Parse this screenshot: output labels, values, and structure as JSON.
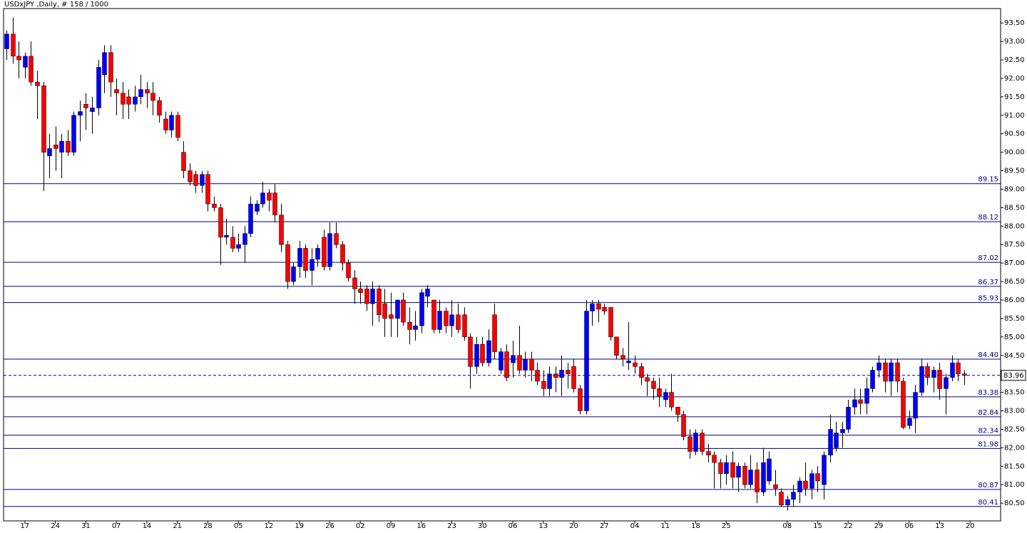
{
  "chart_data": {
    "type": "candlestick",
    "title": "USDxJPY ,Daily, # 158 / 1000",
    "up_color": "#0000ff",
    "down_color": "#ff0000",
    "level_color": "#000080",
    "grid": false,
    "xlim": [
      -0.5,
      163
    ],
    "ylim": [
      80.02,
      93.89
    ],
    "yticks": [
      {
        "value": 80.5,
        "label": "80.50"
      },
      {
        "value": 81,
        "label": "81.00"
      },
      {
        "value": 81.5,
        "label": "81.50"
      },
      {
        "value": 82,
        "label": "82.00"
      },
      {
        "value": 82.5,
        "label": "82.50"
      },
      {
        "value": 83,
        "label": "83.00"
      },
      {
        "value": 83.5,
        "label": "83.50"
      },
      {
        "value": 84,
        "label": "84.00"
      },
      {
        "value": 84.5,
        "label": "84.50"
      },
      {
        "value": 85,
        "label": "85.00"
      },
      {
        "value": 85.5,
        "label": "85.50"
      },
      {
        "value": 86,
        "label": "86.00"
      },
      {
        "value": 86.5,
        "label": "86.50"
      },
      {
        "value": 87,
        "label": "87.00"
      },
      {
        "value": 87.5,
        "label": "87.50"
      },
      {
        "value": 88,
        "label": "88.00"
      },
      {
        "value": 88.5,
        "label": "88.50"
      },
      {
        "value": 89,
        "label": "89.00"
      },
      {
        "value": 89.5,
        "label": "89.50"
      },
      {
        "value": 90,
        "label": "90.00"
      },
      {
        "value": 90.5,
        "label": "90.50"
      },
      {
        "value": 91,
        "label": "91.00"
      },
      {
        "value": 91.5,
        "label": "91.50"
      },
      {
        "value": 92,
        "label": "92.00"
      },
      {
        "value": 92.5,
        "label": "92.50"
      },
      {
        "value": 93,
        "label": "93.00"
      },
      {
        "value": 93.5,
        "label": "93.50"
      }
    ],
    "xticks": [
      {
        "value": 3,
        "label": "17"
      },
      {
        "value": 8,
        "label": "24"
      },
      {
        "value": 13,
        "label": "31"
      },
      {
        "value": 18,
        "label": "07"
      },
      {
        "value": 23,
        "label": "14"
      },
      {
        "value": 28,
        "label": "21"
      },
      {
        "value": 33,
        "label": "28"
      },
      {
        "value": 38,
        "label": "05"
      },
      {
        "value": 43,
        "label": "12"
      },
      {
        "value": 48,
        "label": "19"
      },
      {
        "value": 53,
        "label": "26"
      },
      {
        "value": 58,
        "label": "02"
      },
      {
        "value": 63,
        "label": "09"
      },
      {
        "value": 68,
        "label": "16"
      },
      {
        "value": 73,
        "label": "23"
      },
      {
        "value": 78,
        "label": "30"
      },
      {
        "value": 83,
        "label": "06"
      },
      {
        "value": 88,
        "label": "13"
      },
      {
        "value": 93,
        "label": "20"
      },
      {
        "value": 98,
        "label": "27"
      },
      {
        "value": 103,
        "label": "04"
      },
      {
        "value": 108,
        "label": "11"
      },
      {
        "value": 113,
        "label": "18"
      },
      {
        "value": 118,
        "label": "25"
      },
      {
        "value": 128,
        "label": "08"
      },
      {
        "value": 133,
        "label": "15"
      },
      {
        "value": 138,
        "label": "22"
      },
      {
        "value": 143,
        "label": "29"
      },
      {
        "value": 148,
        "label": "06"
      },
      {
        "value": 153,
        "label": "13"
      },
      {
        "value": 158,
        "label": "20"
      }
    ],
    "levels": [
      89.15,
      88.12,
      87.02,
      86.37,
      85.93,
      {
        "value": 84.4,
        "label": "84.40"
      },
      83.38,
      82.84,
      82.34,
      81.98,
      80.87,
      80.41
    ],
    "last_price": 83.96,
    "ohlc": [
      [
        92.8,
        93.3,
        92.5,
        93.2
      ],
      [
        93.2,
        93.65,
        92.4,
        92.6
      ],
      [
        92.6,
        93.0,
        92.0,
        92.5
      ],
      [
        92.3,
        92.7,
        92.0,
        92.6
      ],
      [
        92.6,
        93.0,
        91.8,
        91.9
      ],
      [
        91.9,
        92.2,
        90.9,
        91.8
      ],
      [
        91.8,
        91.9,
        88.95,
        90.0
      ],
      [
        89.9,
        90.5,
        89.3,
        90.1
      ],
      [
        90.2,
        90.7,
        89.5,
        90.1
      ],
      [
        90.0,
        90.5,
        89.3,
        90.3
      ],
      [
        90.3,
        90.6,
        89.9,
        90.0
      ],
      [
        90.0,
        91.1,
        89.9,
        91.0
      ],
      [
        91.0,
        91.4,
        90.3,
        91.1
      ],
      [
        91.3,
        91.6,
        90.6,
        91.2
      ],
      [
        91.1,
        91.5,
        90.5,
        91.2
      ],
      [
        91.2,
        92.5,
        91.0,
        92.3
      ],
      [
        92.1,
        92.9,
        91.6,
        92.7
      ],
      [
        92.7,
        92.9,
        91.5,
        91.9
      ],
      [
        91.7,
        92.0,
        91.0,
        91.6
      ],
      [
        91.6,
        91.9,
        90.9,
        91.3
      ],
      [
        91.5,
        91.7,
        90.9,
        91.3
      ],
      [
        91.3,
        91.8,
        91.1,
        91.5
      ],
      [
        91.5,
        92.1,
        91.3,
        91.7
      ],
      [
        91.7,
        91.9,
        91.2,
        91.6
      ],
      [
        91.6,
        91.9,
        91.0,
        91.4
      ],
      [
        91.4,
        91.5,
        90.8,
        91.0
      ],
      [
        90.9,
        91.1,
        90.5,
        90.6
      ],
      [
        90.6,
        91.1,
        90.4,
        91.0
      ],
      [
        91.0,
        91.1,
        90.3,
        90.4
      ],
      [
        90.0,
        90.3,
        89.3,
        89.5
      ],
      [
        89.5,
        89.7,
        89.1,
        89.2
      ],
      [
        89.4,
        89.5,
        88.9,
        89.1
      ],
      [
        89.1,
        89.5,
        88.9,
        89.4
      ],
      [
        89.4,
        89.5,
        88.4,
        88.6
      ],
      [
        88.6,
        88.8,
        88.4,
        88.5
      ],
      [
        88.5,
        88.6,
        86.95,
        87.7
      ],
      [
        87.7,
        88.2,
        87.5,
        87.75
      ],
      [
        87.7,
        88.0,
        87.3,
        87.4
      ],
      [
        87.4,
        87.8,
        87.3,
        87.5
      ],
      [
        87.5,
        88.0,
        87.0,
        87.8
      ],
      [
        87.8,
        88.8,
        87.7,
        88.6
      ],
      [
        88.4,
        88.7,
        88.3,
        88.6
      ],
      [
        88.6,
        89.2,
        88.5,
        88.9
      ],
      [
        88.9,
        89.0,
        88.4,
        88.7
      ],
      [
        88.9,
        89.15,
        88.1,
        88.3
      ],
      [
        88.3,
        88.6,
        87.3,
        87.5
      ],
      [
        87.5,
        87.6,
        86.3,
        86.5
      ],
      [
        86.5,
        87.0,
        86.4,
        86.9
      ],
      [
        86.9,
        87.6,
        86.6,
        87.4
      ],
      [
        87.4,
        87.5,
        86.6,
        86.8
      ],
      [
        86.8,
        87.4,
        86.4,
        87.1
      ],
      [
        87.1,
        87.5,
        86.9,
        87.4
      ],
      [
        87.7,
        87.9,
        86.8,
        86.9
      ],
      [
        86.9,
        88.1,
        86.8,
        87.8
      ],
      [
        87.8,
        88.1,
        87.4,
        87.5
      ],
      [
        87.5,
        87.6,
        86.8,
        87.0
      ],
      [
        87.0,
        87.1,
        86.5,
        86.6
      ],
      [
        86.6,
        86.8,
        85.9,
        86.3
      ],
      [
        86.3,
        86.5,
        85.9,
        86.2
      ],
      [
        86.3,
        86.4,
        85.7,
        85.9
      ],
      [
        85.9,
        86.5,
        85.3,
        86.3
      ],
      [
        86.3,
        86.4,
        85.4,
        85.6
      ],
      [
        85.9,
        86.3,
        85.0,
        85.5
      ],
      [
        85.6,
        86.2,
        85.0,
        85.5
      ],
      [
        85.5,
        86.0,
        85.0,
        86.0
      ],
      [
        86.0,
        86.2,
        85.3,
        85.4
      ],
      [
        85.4,
        85.8,
        84.8,
        85.2
      ],
      [
        85.2,
        85.7,
        84.9,
        85.3
      ],
      [
        85.3,
        86.3,
        85.1,
        86.2
      ],
      [
        86.1,
        86.4,
        85.8,
        86.3
      ],
      [
        86.0,
        86.0,
        85.1,
        85.2
      ],
      [
        85.2,
        86.0,
        85.1,
        85.7
      ],
      [
        85.7,
        85.8,
        85.1,
        85.3
      ],
      [
        85.3,
        86.0,
        85.0,
        85.6
      ],
      [
        85.6,
        85.9,
        85.1,
        85.2
      ],
      [
        85.6,
        85.8,
        84.9,
        85.0
      ],
      [
        85.0,
        85.1,
        83.6,
        84.2
      ],
      [
        84.2,
        85.0,
        84.0,
        84.8
      ],
      [
        84.8,
        85.0,
        84.2,
        84.3
      ],
      [
        84.3,
        85.2,
        84.2,
        84.9
      ],
      [
        85.6,
        85.9,
        84.4,
        84.6
      ],
      [
        84.1,
        84.7,
        84.0,
        84.6
      ],
      [
        84.6,
        84.8,
        83.8,
        83.9
      ],
      [
        84.3,
        84.9,
        83.9,
        84.5
      ],
      [
        84.5,
        85.3,
        84.0,
        84.1
      ],
      [
        84.1,
        84.6,
        83.9,
        84.4
      ],
      [
        84.4,
        84.6,
        83.8,
        84.1
      ],
      [
        84.1,
        84.3,
        83.7,
        83.8
      ],
      [
        83.8,
        84.1,
        83.4,
        83.6
      ],
      [
        83.6,
        84.2,
        83.4,
        84.0
      ],
      [
        84.0,
        84.2,
        83.5,
        83.9
      ],
      [
        83.9,
        84.5,
        83.4,
        84.1
      ],
      [
        84.1,
        84.3,
        83.6,
        84.0
      ],
      [
        84.2,
        84.4,
        83.5,
        83.6
      ],
      [
        83.6,
        83.7,
        82.9,
        83.0
      ],
      [
        83.0,
        86.0,
        82.9,
        85.7
      ],
      [
        85.7,
        86.0,
        85.3,
        85.9
      ],
      [
        85.9,
        86.0,
        85.4,
        85.75
      ],
      [
        85.8,
        85.9,
        85.6,
        85.7
      ],
      [
        85.8,
        85.8,
        84.9,
        85.0
      ],
      [
        85.0,
        85.0,
        84.4,
        84.5
      ],
      [
        84.5,
        84.7,
        84.2,
        84.4
      ],
      [
        84.3,
        85.4,
        84.1,
        84.35
      ],
      [
        84.3,
        84.5,
        84.0,
        84.2
      ],
      [
        84.2,
        84.3,
        83.7,
        83.9
      ],
      [
        83.9,
        84.0,
        83.4,
        83.8
      ],
      [
        83.8,
        83.9,
        83.3,
        83.6
      ],
      [
        83.6,
        83.9,
        83.1,
        83.4
      ],
      [
        83.3,
        83.6,
        83.1,
        83.5
      ],
      [
        83.5,
        84.0,
        83.0,
        83.1
      ],
      [
        83.1,
        83.1,
        82.7,
        82.9
      ],
      [
        82.9,
        83.0,
        82.2,
        82.3
      ],
      [
        82.3,
        82.5,
        81.7,
        81.9
      ],
      [
        81.9,
        82.5,
        81.8,
        82.4
      ],
      [
        82.4,
        82.5,
        81.8,
        81.9
      ],
      [
        81.9,
        82.1,
        81.6,
        81.8
      ],
      [
        81.8,
        81.9,
        80.9,
        81.6
      ],
      [
        81.6,
        81.7,
        80.9,
        81.3
      ],
      [
        81.3,
        81.8,
        81.0,
        81.6
      ],
      [
        81.6,
        81.9,
        80.9,
        81.2
      ],
      [
        81.2,
        81.6,
        80.8,
        81.5
      ],
      [
        81.5,
        81.6,
        80.9,
        81.0
      ],
      [
        81.0,
        81.8,
        80.9,
        81.4
      ],
      [
        81.4,
        81.6,
        80.5,
        80.8
      ],
      [
        80.8,
        82.0,
        80.7,
        81.6
      ],
      [
        81.1,
        81.9,
        81.0,
        81.7
      ],
      [
        81.0,
        81.4,
        80.7,
        80.9
      ],
      [
        80.8,
        80.9,
        80.4,
        80.45
      ],
      [
        80.45,
        80.7,
        80.3,
        80.6
      ],
      [
        80.6,
        81.0,
        80.4,
        80.8
      ],
      [
        80.8,
        81.2,
        80.5,
        81.1
      ],
      [
        81.1,
        81.6,
        80.7,
        80.9
      ],
      [
        80.9,
        81.4,
        80.6,
        81.3
      ],
      [
        81.3,
        81.5,
        80.8,
        81.1
      ],
      [
        81.0,
        81.9,
        80.6,
        81.8
      ],
      [
        81.8,
        82.9,
        81.6,
        82.5
      ],
      [
        82.0,
        82.7,
        81.9,
        82.4
      ],
      [
        82.4,
        82.7,
        82.0,
        82.5
      ],
      [
        82.5,
        83.3,
        82.4,
        83.1
      ],
      [
        83.1,
        83.6,
        82.9,
        83.3
      ],
      [
        83.3,
        83.6,
        82.9,
        83.2
      ],
      [
        83.2,
        83.9,
        82.9,
        83.6
      ],
      [
        83.6,
        84.2,
        83.5,
        84.1
      ],
      [
        84.1,
        84.5,
        83.9,
        84.3
      ],
      [
        84.3,
        84.4,
        83.5,
        83.8
      ],
      [
        83.8,
        84.4,
        83.4,
        84.3
      ],
      [
        84.3,
        84.4,
        83.5,
        83.8
      ],
      [
        83.8,
        83.9,
        82.5,
        82.55
      ],
      [
        82.6,
        83.0,
        82.5,
        82.8
      ],
      [
        82.8,
        83.7,
        82.4,
        83.5
      ],
      [
        83.5,
        84.4,
        83.4,
        84.2
      ],
      [
        84.2,
        84.3,
        83.7,
        83.9
      ],
      [
        83.9,
        84.2,
        83.5,
        84.1
      ],
      [
        84.1,
        84.3,
        83.3,
        83.6
      ],
      [
        83.6,
        84.0,
        82.9,
        83.9
      ],
      [
        83.9,
        84.5,
        83.8,
        84.3
      ],
      [
        84.3,
        84.4,
        83.8,
        84.0
      ],
      [
        84.0,
        84.1,
        83.7,
        83.96
      ]
    ]
  }
}
